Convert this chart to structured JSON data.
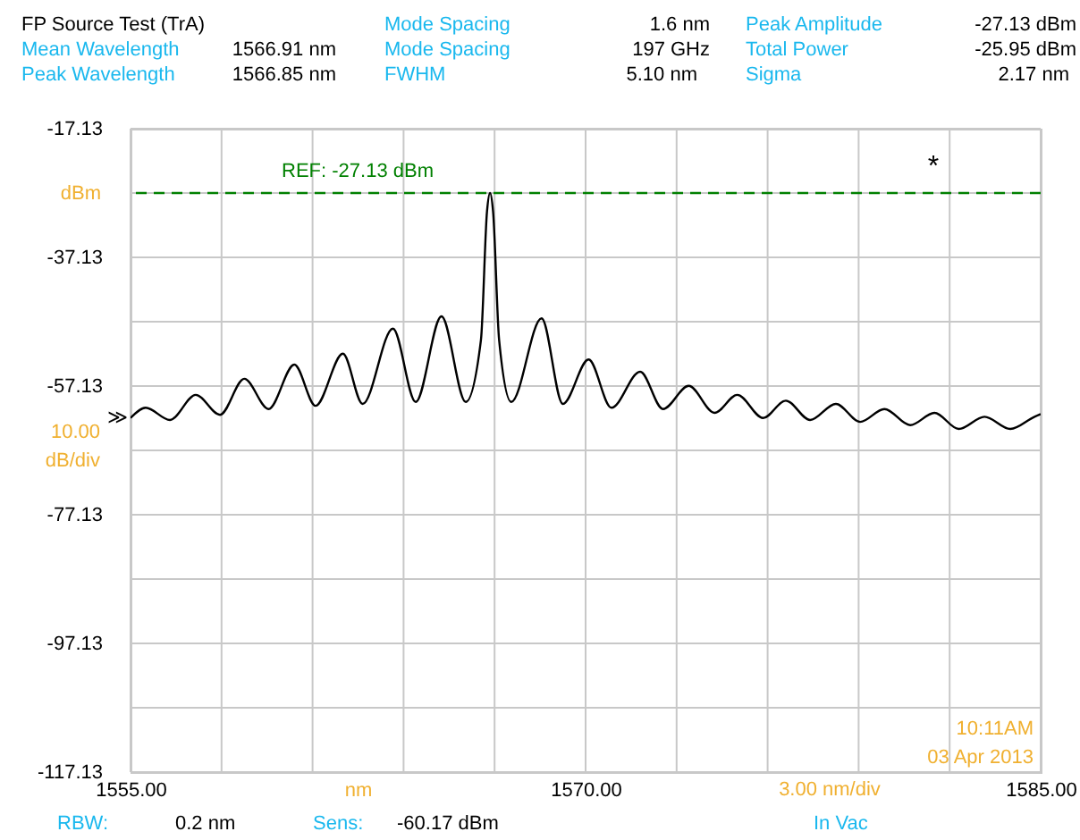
{
  "chart_data": {
    "type": "line",
    "title": "FP Source Test (TrA)",
    "xlabel": "nm",
    "ylabel": "dBm",
    "x": [
      1555.0,
      1555.5,
      1556.3,
      1557.15,
      1557.95,
      1558.75,
      1559.55,
      1560.4,
      1561.1,
      1562.0,
      1562.65,
      1563.65,
      1564.4,
      1565.25,
      1566.05,
      1566.55,
      1566.75,
      1566.85,
      1566.95,
      1567.15,
      1567.55,
      1568.55,
      1569.25,
      1570.1,
      1570.85,
      1571.8,
      1572.55,
      1573.4,
      1574.25,
      1575.0,
      1575.85,
      1576.6,
      1577.4,
      1578.25,
      1579.05,
      1579.85,
      1580.7,
      1581.5,
      1582.3,
      1583.15,
      1584.0,
      1584.8,
      1585.0
    ],
    "series": [
      {
        "color": "#000000",
        "values": [
          -62.1,
          -60.5,
          -62.4,
          -58.5,
          -61.6,
          -56.0,
          -60.7,
          -53.8,
          -60.2,
          -52.1,
          -59.9,
          -48.2,
          -59.6,
          -46.3,
          -59.6,
          -50.0,
          -30.0,
          -27.13,
          -30.0,
          -50.0,
          -59.6,
          -46.6,
          -59.9,
          -53.0,
          -60.5,
          -54.9,
          -60.7,
          -57.1,
          -61.3,
          -58.5,
          -62.1,
          -59.4,
          -62.4,
          -59.9,
          -62.7,
          -60.7,
          -63.2,
          -61.3,
          -63.8,
          -61.9,
          -63.8,
          -61.9,
          -61.5
        ]
      }
    ],
    "xlim": [
      1555,
      1585
    ],
    "xticks": [
      {
        "value": 1555,
        "label": "1555.00"
      },
      {
        "value": 1558,
        "label": null
      },
      {
        "value": 1561,
        "label": null
      },
      {
        "value": 1564,
        "label": null
      },
      {
        "value": 1567,
        "label": null
      },
      {
        "value": 1570,
        "label": "1570.00"
      },
      {
        "value": 1573,
        "label": null
      },
      {
        "value": 1576,
        "label": null
      },
      {
        "value": 1579,
        "label": null
      },
      {
        "value": 1582,
        "label": null
      },
      {
        "value": 1585,
        "label": "1585.00"
      }
    ],
    "ylim": [
      -117.13,
      -17.13
    ],
    "yticks": [
      -117.13,
      {
        "value": -107.13,
        "label": null
      },
      -97.13,
      {
        "value": -87.13,
        "label": null
      },
      -77.13,
      {
        "value": -67.13,
        "label": null
      },
      -57.13,
      {
        "value": -47.13,
        "label": null
      },
      -37.13,
      {
        "value": -27.13,
        "label": null
      },
      -17.13
    ],
    "grid": true,
    "marker": "none",
    "line_style": "solid",
    "ref_lines": [
      {
        "axis": "y",
        "value": -27.13,
        "label": "REF: -27.13 dBm",
        "color": "#008000",
        "line_style": "dashed"
      }
    ],
    "annotations": [
      "Mean Wavelength",
      "1566.91 nm",
      "Peak Wavelength",
      "1566.85 nm",
      "Mode Spacing",
      "1.6 nm",
      "Mode Spacing",
      "197 GHz",
      "FWHM",
      "5.10 nm",
      "Peak Amplitude",
      "-27.13 dBm",
      "Total Power",
      "-25.95 dBm",
      "Sigma",
      "2.17 nm",
      "*",
      "10.00",
      "dB/div",
      "3.00 nm/div",
      "10:11AM",
      "03 Apr 2013",
      "RBW:",
      "0.2 nm",
      "Sens:",
      "-60.17 dBm",
      "In Vac",
      "≫"
    ]
  }
}
